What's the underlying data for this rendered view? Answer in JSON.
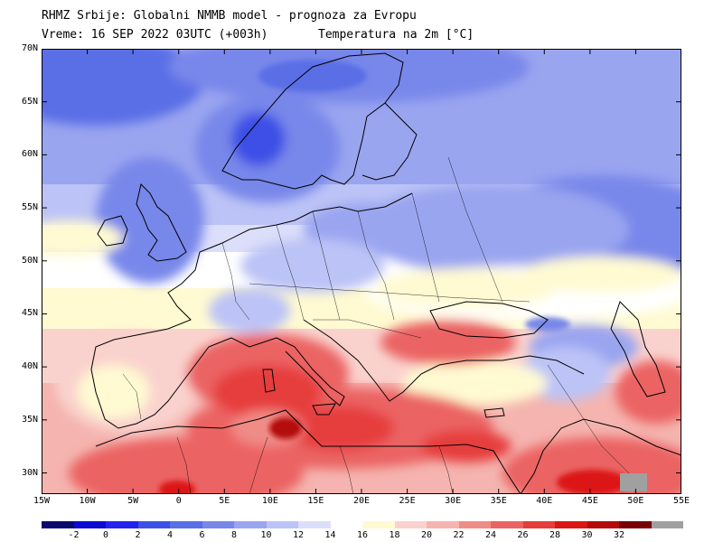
{
  "header": {
    "title": "RHMZ Srbije: Globalni NMMB model - prognoza za Evropu",
    "valid_time": "Vreme: 16 SEP 2022 03UTC (+003h)",
    "field": "Temperatura na 2m [°C]"
  },
  "map": {
    "region": "Europe",
    "lat_range": [
      28,
      70
    ],
    "lon_range": [
      -15,
      55
    ],
    "lat_labels": [
      "30N",
      "35N",
      "40N",
      "45N",
      "50N",
      "55N",
      "60N",
      "65N",
      "70N"
    ],
    "lon_labels": [
      "15W",
      "10W",
      "5W",
      "0",
      "5E",
      "10E",
      "15E",
      "20E",
      "25E",
      "30E",
      "35E",
      "40E",
      "45E",
      "50E",
      "55E"
    ]
  },
  "colorbar": {
    "colors": [
      "#0a0a6e",
      "#0b0bd2",
      "#2323f0",
      "#3c50e6",
      "#5a6ee6",
      "#7887ea",
      "#9aa5f0",
      "#bcc3f6",
      "#dcdffa",
      "#ffffff",
      "#fffad2",
      "#fad2cd",
      "#f5b4af",
      "#f08c87",
      "#eb6464",
      "#e63c3c",
      "#dc1414",
      "#b40a0a",
      "#780000",
      "#a0a0a0"
    ],
    "labels": [
      "-2",
      "0",
      "2",
      "4",
      "6",
      "8",
      "10",
      "12",
      "14",
      "16",
      "18",
      "20",
      "22",
      "24",
      "26",
      "28",
      "30",
      "32"
    ]
  }
}
